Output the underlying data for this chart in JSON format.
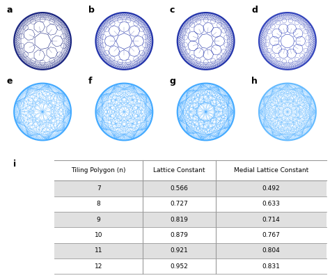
{
  "panel_labels": [
    "a",
    "b",
    "c",
    "d",
    "e",
    "f",
    "g",
    "h",
    "i"
  ],
  "table_headers": [
    "Tiling Polygon (n)",
    "Lattice Constant",
    "Medial Lattice Constant"
  ],
  "table_rows": [
    [
      7,
      0.566,
      0.492
    ],
    [
      8,
      0.727,
      0.633
    ],
    [
      9,
      0.819,
      0.714
    ],
    [
      10,
      0.879,
      0.767
    ],
    [
      11,
      0.921,
      0.804
    ],
    [
      12,
      0.952,
      0.831
    ]
  ],
  "colors_top": [
    "#1a2580",
    "#2233aa",
    "#2233aa",
    "#3344bb"
  ],
  "colors_bot": [
    "#44aaff",
    "#44aaff",
    "#44aaff",
    "#66bbff"
  ],
  "bg_color": "#ffffff",
  "table_stripe": "#e0e0e0",
  "table_border": "#999999",
  "header_fontsize": 6.5,
  "label_fontsize": 9
}
